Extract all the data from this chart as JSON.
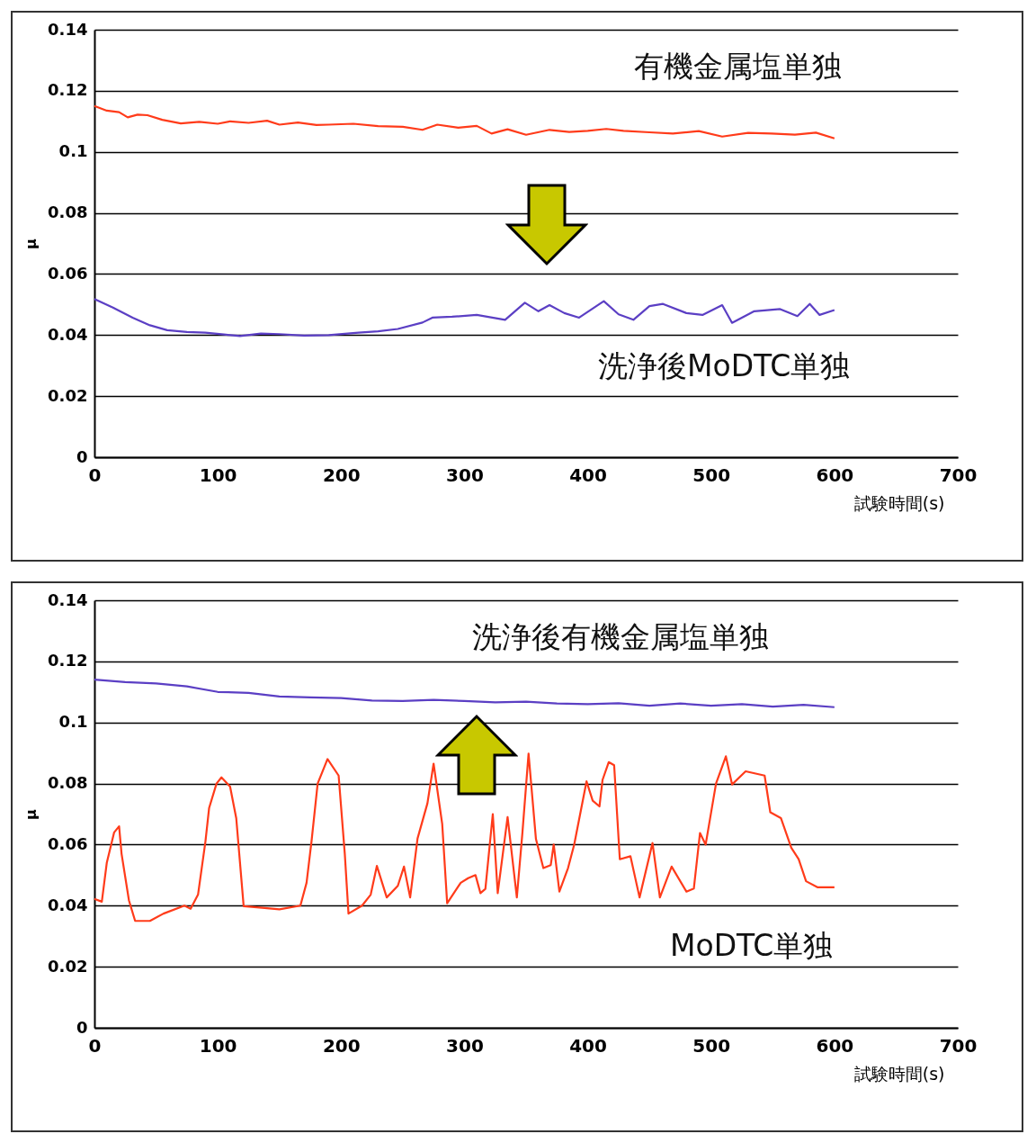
{
  "chart_data": [
    {
      "type": "line",
      "xlabel": "試験時間(s)",
      "ylabel": "μ",
      "xlim": [
        0,
        700
      ],
      "xticks": [
        0,
        100,
        200,
        300,
        400,
        500,
        600,
        700
      ],
      "ylim": [
        0,
        0.14
      ],
      "yticks": [
        0,
        0.02,
        0.04,
        0.06,
        0.08,
        0.1,
        0.12,
        0.14
      ],
      "grid": "y",
      "line_style": "solid",
      "series": [
        {
          "name": "有機金属塩単独",
          "color": "#ff3b1a",
          "x": [
            0,
            10,
            20,
            27,
            35,
            43,
            55,
            70,
            85,
            100,
            110,
            125,
            140,
            150,
            165,
            180,
            190,
            210,
            230,
            250,
            266,
            278,
            295,
            310,
            322,
            335,
            350,
            369,
            385,
            400,
            415,
            429,
            450,
            469,
            490,
            509,
            530,
            549,
            568,
            585,
            600
          ],
          "values": [
            0.115,
            0.1135,
            0.113,
            0.1113,
            0.1122,
            0.112,
            0.1105,
            0.1093,
            0.1098,
            0.1092,
            0.11,
            0.1095,
            0.1102,
            0.1089,
            0.1096,
            0.1088,
            0.1089,
            0.1092,
            0.1084,
            0.1082,
            0.1072,
            0.1089,
            0.1079,
            0.1085,
            0.106,
            0.1074,
            0.1056,
            0.1072,
            0.1065,
            0.1069,
            0.1075,
            0.1069,
            0.1064,
            0.106,
            0.1068,
            0.105,
            0.1062,
            0.106,
            0.1056,
            0.1063,
            0.1044
          ]
        },
        {
          "name": "洗浄後MoDTC単独",
          "color": "#5b3fc4",
          "x": [
            0,
            15,
            31,
            45,
            59,
            75,
            90,
            105,
            118,
            135,
            150,
            170,
            190,
            214,
            230,
            246,
            266,
            274,
            290,
            310,
            333,
            349,
            360,
            369,
            381,
            393,
            413,
            425,
            437,
            450,
            461,
            480,
            493,
            509,
            517,
            535,
            556,
            570,
            580,
            588,
            600
          ],
          "values": [
            0.0518,
            0.049,
            0.0457,
            0.0432,
            0.0416,
            0.041,
            0.0408,
            0.0402,
            0.0397,
            0.0405,
            0.0403,
            0.0398,
            0.04,
            0.0408,
            0.0412,
            0.042,
            0.0441,
            0.0457,
            0.046,
            0.0466,
            0.045,
            0.0506,
            0.0478,
            0.0498,
            0.0472,
            0.0457,
            0.0511,
            0.0468,
            0.045,
            0.0495,
            0.0502,
            0.0472,
            0.0466,
            0.0498,
            0.044,
            0.0478,
            0.0485,
            0.0462,
            0.0502,
            0.0466,
            0.0482
          ]
        }
      ]
    },
    {
      "type": "line",
      "xlabel": "試験時間(s)",
      "ylabel": "μ",
      "xlim": [
        0,
        700
      ],
      "xticks": [
        0,
        100,
        200,
        300,
        400,
        500,
        600,
        700
      ],
      "ylim": [
        0,
        0.14
      ],
      "yticks": [
        0,
        0.02,
        0.04,
        0.06,
        0.08,
        0.1,
        0.12,
        0.14
      ],
      "grid": "y",
      "line_style": "solid",
      "series": [
        {
          "name": "洗浄後有機金属塩単独",
          "color": "#5b3fc4",
          "x": [
            0,
            25,
            50,
            75,
            100,
            125,
            150,
            175,
            200,
            225,
            250,
            275,
            300,
            325,
            350,
            375,
            400,
            425,
            450,
            475,
            500,
            525,
            550,
            575,
            600
          ],
          "values": [
            0.114,
            0.1132,
            0.1128,
            0.1118,
            0.11,
            0.1097,
            0.1085,
            0.1082,
            0.108,
            0.1072,
            0.107,
            0.1074,
            0.107,
            0.1066,
            0.1068,
            0.1062,
            0.106,
            0.1063,
            0.1055,
            0.1062,
            0.1055,
            0.106,
            0.1052,
            0.1058,
            0.105
          ]
        },
        {
          "name": "MoDTC単独",
          "color": "#ff3b1a",
          "x": [
            0,
            6,
            10,
            16,
            20,
            22,
            28,
            33,
            45,
            56,
            73,
            78,
            84,
            90,
            93,
            99,
            103,
            110,
            115,
            121,
            136,
            150,
            167,
            172,
            176,
            181,
            189,
            198,
            203,
            206,
            217,
            224,
            229,
            237,
            246,
            251,
            256,
            262,
            270,
            275,
            282,
            286,
            297,
            303,
            309,
            313,
            317,
            323,
            327,
            335,
            342.5,
            347,
            352,
            358,
            364,
            370,
            372.4,
            377,
            384,
            389,
            399,
            404,
            409.5,
            412,
            417,
            421.4,
            426,
            434.6,
            442,
            452.5,
            458.5,
            468,
            480,
            486,
            491,
            495.6,
            504,
            512,
            517,
            528,
            543.4,
            548,
            556.6,
            565,
            571,
            577,
            586.5,
            600
          ],
          "values": [
            0.0422,
            0.0413,
            0.054,
            0.064,
            0.066,
            0.057,
            0.0417,
            0.035,
            0.035,
            0.0374,
            0.04,
            0.039,
            0.0436,
            0.061,
            0.072,
            0.08,
            0.082,
            0.079,
            0.0686,
            0.0398,
            0.0393,
            0.0388,
            0.04,
            0.0475,
            0.061,
            0.08,
            0.088,
            0.0826,
            0.057,
            0.0374,
            0.04,
            0.0436,
            0.053,
            0.0427,
            0.0465,
            0.0528,
            0.0427,
            0.062,
            0.0735,
            0.0865,
            0.0667,
            0.0408,
            0.0475,
            0.049,
            0.05,
            0.0441,
            0.0455,
            0.07,
            0.0441,
            0.069,
            0.0427,
            0.0638,
            0.0898,
            0.0618,
            0.0523,
            0.0533,
            0.06,
            0.0446,
            0.0523,
            0.06,
            0.0807,
            0.0744,
            0.0725,
            0.0812,
            0.087,
            0.086,
            0.0552,
            0.0562,
            0.0427,
            0.0605,
            0.0427,
            0.0528,
            0.0446,
            0.0456,
            0.0638,
            0.06,
            0.08,
            0.0889,
            0.0797,
            0.084,
            0.0826,
            0.0706,
            0.0687,
            0.059,
            0.0552,
            0.048,
            0.046,
            0.046
          ]
        }
      ]
    }
  ]
}
